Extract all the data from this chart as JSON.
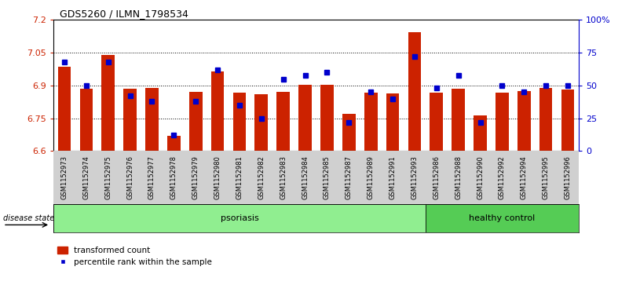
{
  "title": "GDS5260 / ILMN_1798534",
  "samples": [
    "GSM1152973",
    "GSM1152974",
    "GSM1152975",
    "GSM1152976",
    "GSM1152977",
    "GSM1152978",
    "GSM1152979",
    "GSM1152980",
    "GSM1152981",
    "GSM1152982",
    "GSM1152983",
    "GSM1152984",
    "GSM1152985",
    "GSM1152987",
    "GSM1152989",
    "GSM1152991",
    "GSM1152993",
    "GSM1152986",
    "GSM1152988",
    "GSM1152990",
    "GSM1152992",
    "GSM1152994",
    "GSM1152995",
    "GSM1152996"
  ],
  "bar_values": [
    6.985,
    6.885,
    7.04,
    6.885,
    6.888,
    6.67,
    6.872,
    6.965,
    6.868,
    6.86,
    6.872,
    6.905,
    6.905,
    6.77,
    6.868,
    6.863,
    7.145,
    6.868,
    6.885,
    6.763,
    6.868,
    6.875,
    6.888,
    6.882
  ],
  "percentile_values": [
    68,
    50,
    68,
    42,
    38,
    12,
    38,
    62,
    35,
    25,
    55,
    58,
    60,
    22,
    45,
    40,
    72,
    48,
    58,
    22,
    50,
    45,
    50,
    50
  ],
  "psoriasis_count": 17,
  "healthy_count": 7,
  "ymin": 6.6,
  "ymax": 7.2,
  "yticks": [
    6.6,
    6.75,
    6.9,
    7.05,
    7.2
  ],
  "pct_yticks": [
    0,
    25,
    50,
    75,
    100
  ],
  "bar_color": "#cc2200",
  "marker_color": "#0000cc",
  "psoriasis_color": "#90ee90",
  "healthy_color": "#55cc55",
  "label_bg": "#d0d0d0",
  "plot_bg": "#ffffff"
}
